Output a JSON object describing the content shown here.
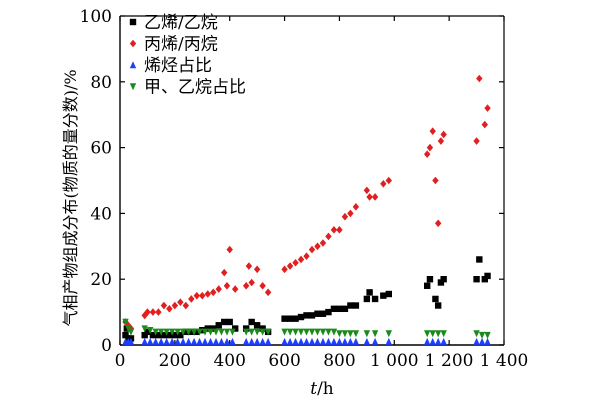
{
  "chart_data": {
    "type": "scatter",
    "xlabel": "t/h",
    "ylabel": "气相产物组成分布(物质的量分数)/%",
    "xlim": [
      0,
      1400
    ],
    "ylim": [
      0,
      100
    ],
    "xticks": [
      0,
      200,
      400,
      600,
      800,
      1000,
      1200,
      1400
    ],
    "xtick_labels": [
      "0",
      "200",
      "400",
      "600",
      "800",
      "1 000",
      "1 200",
      "1 400"
    ],
    "yticks": [
      0,
      20,
      40,
      60,
      80,
      100
    ],
    "ytick_labels": [
      "0",
      "20",
      "40",
      "60",
      "80",
      "100"
    ],
    "grid": false,
    "legend_position": "top-left",
    "series": [
      {
        "name": "乙烯/乙烷",
        "marker": "square",
        "color": "#000000",
        "points": [
          [
            20,
            3
          ],
          [
            25,
            5
          ],
          [
            30,
            2
          ],
          [
            40,
            2
          ],
          [
            90,
            3
          ],
          [
            100,
            4
          ],
          [
            120,
            3
          ],
          [
            140,
            3
          ],
          [
            160,
            3
          ],
          [
            180,
            3
          ],
          [
            200,
            3
          ],
          [
            220,
            3
          ],
          [
            240,
            4
          ],
          [
            260,
            4
          ],
          [
            280,
            4
          ],
          [
            300,
            4.5
          ],
          [
            320,
            5
          ],
          [
            340,
            5
          ],
          [
            360,
            6
          ],
          [
            380,
            7
          ],
          [
            400,
            7
          ],
          [
            420,
            5
          ],
          [
            460,
            5
          ],
          [
            480,
            7
          ],
          [
            500,
            6
          ],
          [
            520,
            5
          ],
          [
            540,
            4
          ],
          [
            600,
            8
          ],
          [
            620,
            8
          ],
          [
            640,
            8
          ],
          [
            660,
            8.5
          ],
          [
            680,
            9
          ],
          [
            700,
            9
          ],
          [
            720,
            9.5
          ],
          [
            740,
            9.5
          ],
          [
            760,
            10
          ],
          [
            780,
            11
          ],
          [
            800,
            11
          ],
          [
            820,
            11
          ],
          [
            840,
            12
          ],
          [
            860,
            12
          ],
          [
            900,
            14
          ],
          [
            910,
            16
          ],
          [
            930,
            14
          ],
          [
            960,
            15
          ],
          [
            980,
            15.5
          ],
          [
            1120,
            18
          ],
          [
            1130,
            20
          ],
          [
            1150,
            14
          ],
          [
            1160,
            12
          ],
          [
            1170,
            19
          ],
          [
            1180,
            20
          ],
          [
            1300,
            20
          ],
          [
            1310,
            26
          ],
          [
            1330,
            20
          ],
          [
            1340,
            21
          ]
        ]
      },
      {
        "name": "丙烯/丙烷",
        "marker": "diamond",
        "color": "#e02020",
        "points": [
          [
            20,
            7
          ],
          [
            30,
            6
          ],
          [
            40,
            5
          ],
          [
            90,
            9
          ],
          [
            100,
            10
          ],
          [
            120,
            10
          ],
          [
            140,
            10
          ],
          [
            160,
            12
          ],
          [
            180,
            11
          ],
          [
            200,
            12
          ],
          [
            220,
            13
          ],
          [
            240,
            12
          ],
          [
            260,
            14
          ],
          [
            280,
            15
          ],
          [
            300,
            15
          ],
          [
            320,
            15.5
          ],
          [
            340,
            16
          ],
          [
            360,
            17
          ],
          [
            380,
            22
          ],
          [
            390,
            18
          ],
          [
            400,
            29
          ],
          [
            420,
            17
          ],
          [
            460,
            18
          ],
          [
            470,
            24
          ],
          [
            480,
            19
          ],
          [
            500,
            23
          ],
          [
            520,
            18
          ],
          [
            540,
            16
          ],
          [
            600,
            23
          ],
          [
            620,
            24
          ],
          [
            640,
            25
          ],
          [
            660,
            26
          ],
          [
            680,
            27
          ],
          [
            700,
            29
          ],
          [
            720,
            30
          ],
          [
            740,
            31
          ],
          [
            760,
            33
          ],
          [
            780,
            35
          ],
          [
            800,
            35
          ],
          [
            820,
            39
          ],
          [
            840,
            40
          ],
          [
            860,
            42
          ],
          [
            900,
            47
          ],
          [
            910,
            45
          ],
          [
            930,
            45
          ],
          [
            960,
            49
          ],
          [
            980,
            50
          ],
          [
            1120,
            58
          ],
          [
            1130,
            60
          ],
          [
            1140,
            65
          ],
          [
            1150,
            50
          ],
          [
            1160,
            37
          ],
          [
            1170,
            62
          ],
          [
            1180,
            64
          ],
          [
            1300,
            62
          ],
          [
            1310,
            81
          ],
          [
            1330,
            67
          ],
          [
            1340,
            72
          ]
        ]
      },
      {
        "name": "烯烃占比",
        "marker": "triangle-up",
        "color": "#1f3fff",
        "points": [
          [
            20,
            1
          ],
          [
            30,
            1
          ],
          [
            40,
            1
          ],
          [
            90,
            1
          ],
          [
            110,
            1
          ],
          [
            130,
            1
          ],
          [
            150,
            1
          ],
          [
            170,
            1
          ],
          [
            190,
            1
          ],
          [
            210,
            1
          ],
          [
            230,
            1
          ],
          [
            250,
            1
          ],
          [
            270,
            1
          ],
          [
            290,
            1
          ],
          [
            310,
            1
          ],
          [
            330,
            1
          ],
          [
            350,
            1
          ],
          [
            370,
            1
          ],
          [
            390,
            1
          ],
          [
            410,
            1
          ],
          [
            460,
            1
          ],
          [
            480,
            1
          ],
          [
            500,
            1
          ],
          [
            520,
            1
          ],
          [
            540,
            1
          ],
          [
            600,
            1
          ],
          [
            620,
            1
          ],
          [
            640,
            1
          ],
          [
            660,
            1
          ],
          [
            680,
            1
          ],
          [
            700,
            1
          ],
          [
            720,
            1
          ],
          [
            740,
            1
          ],
          [
            760,
            1
          ],
          [
            780,
            1
          ],
          [
            800,
            1
          ],
          [
            820,
            1
          ],
          [
            840,
            1
          ],
          [
            860,
            1
          ],
          [
            900,
            1
          ],
          [
            930,
            1
          ],
          [
            980,
            1
          ],
          [
            1120,
            1
          ],
          [
            1140,
            1
          ],
          [
            1160,
            1
          ],
          [
            1180,
            1
          ],
          [
            1300,
            1
          ],
          [
            1320,
            1
          ],
          [
            1340,
            1
          ]
        ]
      },
      {
        "name": "甲、乙烷占比",
        "marker": "triangle-down",
        "color": "#1a8a1a",
        "points": [
          [
            20,
            7
          ],
          [
            30,
            5
          ],
          [
            40,
            4
          ],
          [
            90,
            5
          ],
          [
            110,
            4.5
          ],
          [
            130,
            4
          ],
          [
            150,
            4
          ],
          [
            170,
            4
          ],
          [
            190,
            4
          ],
          [
            210,
            4
          ],
          [
            230,
            4
          ],
          [
            250,
            4
          ],
          [
            270,
            4
          ],
          [
            290,
            4
          ],
          [
            310,
            4
          ],
          [
            330,
            4
          ],
          [
            350,
            4
          ],
          [
            370,
            4
          ],
          [
            390,
            4
          ],
          [
            410,
            4
          ],
          [
            460,
            4
          ],
          [
            480,
            4
          ],
          [
            500,
            4
          ],
          [
            520,
            4
          ],
          [
            540,
            4
          ],
          [
            600,
            4
          ],
          [
            620,
            4
          ],
          [
            640,
            4
          ],
          [
            660,
            4
          ],
          [
            680,
            4
          ],
          [
            700,
            4
          ],
          [
            720,
            4
          ],
          [
            740,
            4
          ],
          [
            760,
            4
          ],
          [
            780,
            4
          ],
          [
            800,
            3.5
          ],
          [
            820,
            3.5
          ],
          [
            840,
            3.5
          ],
          [
            860,
            3.5
          ],
          [
            900,
            3.5
          ],
          [
            930,
            3.5
          ],
          [
            980,
            3.5
          ],
          [
            1120,
            3.5
          ],
          [
            1140,
            3.5
          ],
          [
            1160,
            3.5
          ],
          [
            1180,
            3.5
          ],
          [
            1300,
            3.5
          ],
          [
            1320,
            3
          ],
          [
            1340,
            3
          ]
        ]
      }
    ]
  }
}
